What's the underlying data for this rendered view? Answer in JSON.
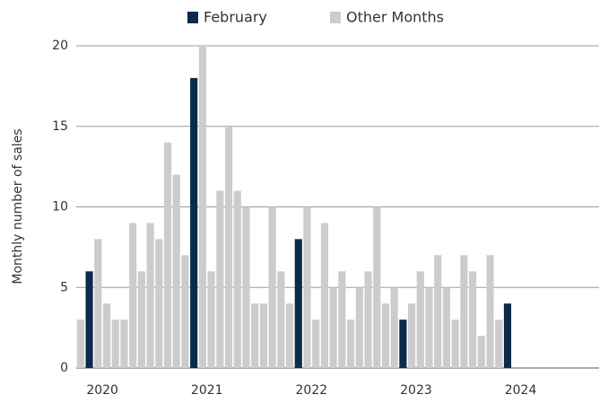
{
  "chart_data": {
    "type": "bar",
    "ylabel": "Monthly number of sales",
    "categories": [
      null,
      null,
      "2020",
      null,
      null,
      null,
      null,
      null,
      null,
      null,
      null,
      null,
      null,
      null,
      "2021",
      null,
      null,
      null,
      null,
      null,
      null,
      null,
      null,
      null,
      null,
      null,
      "2022",
      null,
      null,
      null,
      null,
      null,
      null,
      null,
      null,
      null,
      null,
      null,
      "2023",
      null,
      null,
      null,
      null,
      null,
      null,
      null,
      null,
      null,
      null,
      null,
      "2024",
      null,
      null,
      null,
      null,
      null,
      null,
      null,
      null,
      null
    ],
    "series": [
      {
        "name": "February",
        "color": "#0d2a4a",
        "values": [
          null,
          6,
          null,
          null,
          null,
          null,
          null,
          null,
          null,
          null,
          null,
          null,
          null,
          18,
          null,
          null,
          null,
          null,
          null,
          null,
          null,
          null,
          null,
          null,
          null,
          8,
          null,
          null,
          null,
          null,
          null,
          null,
          null,
          null,
          null,
          null,
          null,
          3,
          null,
          null,
          null,
          null,
          null,
          null,
          null,
          null,
          null,
          null,
          null,
          4,
          null,
          null,
          null,
          null,
          null,
          null,
          null,
          null,
          null,
          null
        ]
      },
      {
        "name": "Other Months",
        "color": "#cccccc",
        "values": [
          3,
          null,
          8,
          4,
          3,
          3,
          9,
          6,
          9,
          8,
          14,
          12,
          7,
          null,
          20,
          6,
          11,
          15,
          11,
          10,
          4,
          4,
          10,
          6,
          4,
          null,
          10,
          3,
          9,
          5,
          6,
          3,
          5,
          6,
          10,
          4,
          5,
          null,
          4,
          6,
          5,
          7,
          5,
          3,
          7,
          6,
          2,
          7,
          3,
          null,
          null,
          null,
          null,
          null,
          null,
          null,
          null,
          null,
          null,
          null
        ]
      }
    ],
    "ylim": [
      0,
      20
    ],
    "yticks": [
      0,
      5,
      10,
      15,
      20
    ],
    "grid": true,
    "legend": "top"
  }
}
